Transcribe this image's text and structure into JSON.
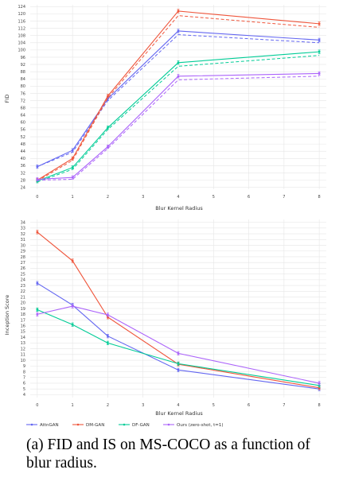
{
  "caption": "(a) FID and IS on MS-COCO as a function of blur radius.",
  "colors": {
    "AttnGAN": "#6366f1",
    "DM-GAN": "#ef553b",
    "DF-GAN": "#00cc96",
    "Ours": "#ab63fa"
  },
  "legend": {
    "entries": [
      "AttnGAN",
      "DM-GAN",
      "DF-GAN",
      "Ours (zero-shot, t=1)"
    ],
    "placement": "bottom"
  },
  "chart_data": [
    {
      "type": "line",
      "xlabel": "Blur Kernel Radius",
      "ylabel": "FID",
      "xlim": [
        -0.2,
        8.2
      ],
      "ylim": [
        23,
        125
      ],
      "xticks": [
        0,
        1,
        2,
        3,
        4,
        5,
        6,
        7,
        8
      ],
      "yticks": [
        24,
        28,
        32,
        36,
        40,
        44,
        48,
        52,
        56,
        60,
        64,
        68,
        72,
        76,
        80,
        84,
        88,
        92,
        96,
        100,
        104,
        108,
        112,
        116,
        120,
        124
      ],
      "grid": true,
      "x": [
        0,
        1,
        2,
        4,
        8
      ],
      "series": [
        {
          "name": "AttnGAN",
          "values": [
            35.5,
            44.5,
            73.0,
            110.5,
            105.5
          ],
          "dashed_values": [
            35.5,
            43.5,
            72.0,
            108.5,
            104.0
          ]
        },
        {
          "name": "DM-GAN",
          "values": [
            28.0,
            40.0,
            74.5,
            121.5,
            114.5
          ],
          "dashed_values": [
            27.5,
            39.0,
            73.5,
            119.0,
            112.5
          ]
        },
        {
          "name": "DF-GAN",
          "values": [
            27.5,
            35.0,
            57.0,
            93.0,
            99.0
          ],
          "dashed_values": [
            27.0,
            34.0,
            56.0,
            91.0,
            97.0
          ]
        },
        {
          "name": "Ours (zero-shot, t=1)",
          "values": [
            28.5,
            29.5,
            46.5,
            85.5,
            87.0
          ],
          "dashed_values": [
            28.0,
            28.5,
            45.5,
            83.5,
            85.5
          ]
        }
      ]
    },
    {
      "type": "line",
      "xlabel": "Blur Kernel Radius",
      "ylabel": "Inception Score",
      "xlim": [
        -0.2,
        8.2
      ],
      "ylim": [
        3.5,
        34.5
      ],
      "xticks": [
        0,
        1,
        2,
        3,
        4,
        5,
        6,
        7,
        8
      ],
      "yticks": [
        4,
        5,
        6,
        7,
        8,
        9,
        10,
        11,
        12,
        13,
        14,
        15,
        16,
        17,
        18,
        19,
        20,
        21,
        22,
        23,
        24,
        25,
        26,
        27,
        28,
        29,
        30,
        31,
        32,
        33,
        34
      ],
      "grid": true,
      "x": [
        0,
        1,
        2,
        4,
        8
      ],
      "series": [
        {
          "name": "AttnGAN",
          "values": [
            23.4,
            19.6,
            14.2,
            8.3,
            5.0
          ]
        },
        {
          "name": "DM-GAN",
          "values": [
            32.3,
            27.3,
            17.5,
            9.3,
            5.2
          ]
        },
        {
          "name": "DF-GAN",
          "values": [
            18.8,
            16.2,
            13.0,
            9.4,
            5.6
          ]
        },
        {
          "name": "Ours (zero-shot, t=1)",
          "values": [
            18.0,
            19.4,
            17.9,
            11.2,
            6.0
          ]
        }
      ]
    }
  ]
}
